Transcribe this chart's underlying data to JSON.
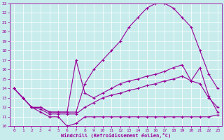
{
  "xlabel": "Windchill (Refroidissement éolien,°C)",
  "background_color": "#c8ecec",
  "grid_color": "#aacccc",
  "line_color": "#990099",
  "xlim": [
    -0.5,
    23.5
  ],
  "ylim": [
    10,
    23
  ],
  "yticks": [
    10,
    11,
    12,
    13,
    14,
    15,
    16,
    17,
    18,
    19,
    20,
    21,
    22,
    23
  ],
  "xticks": [
    0,
    1,
    2,
    3,
    4,
    5,
    6,
    7,
    8,
    9,
    10,
    11,
    12,
    13,
    14,
    15,
    16,
    17,
    18,
    19,
    20,
    21,
    22,
    23
  ],
  "series": [
    {
      "x": [
        0,
        1,
        2,
        3,
        4,
        5,
        6,
        7,
        8,
        9,
        10,
        11,
        12,
        13,
        14,
        15,
        16,
        17,
        18,
        19,
        20,
        21,
        22,
        23
      ],
      "y": [
        14.0,
        13.0,
        12.0,
        12.0,
        11.5,
        11.5,
        11.5,
        11.5,
        14.5,
        16.0,
        17.0,
        18.0,
        19.0,
        20.5,
        21.5,
        22.5,
        23.0,
        23.0,
        22.5,
        21.5,
        20.5,
        18.0,
        15.5,
        14.0
      ]
    },
    {
      "x": [
        0,
        1,
        2,
        3,
        4,
        5,
        6,
        7,
        8,
        9,
        10,
        11,
        12,
        13,
        14,
        15,
        16,
        17,
        18,
        19,
        20,
        21,
        22,
        23
      ],
      "y": [
        14.0,
        13.0,
        12.0,
        12.0,
        11.5,
        11.5,
        11.5,
        17.0,
        13.5,
        13.0,
        13.5,
        14.0,
        14.5,
        14.8,
        15.0,
        15.3,
        15.5,
        15.8,
        16.2,
        16.5,
        14.8,
        16.2,
        13.2,
        11.5
      ]
    },
    {
      "x": [
        0,
        1,
        2,
        3,
        4,
        5,
        6,
        7,
        8,
        9,
        10,
        11,
        12,
        13,
        14,
        15,
        16,
        17,
        18,
        19,
        20,
        21,
        22,
        23
      ],
      "y": [
        14.0,
        13.0,
        12.0,
        11.8,
        11.3,
        11.3,
        11.3,
        11.3,
        12.0,
        12.5,
        13.0,
        13.3,
        13.5,
        13.8,
        14.0,
        14.3,
        14.5,
        14.8,
        15.0,
        15.3,
        14.8,
        14.5,
        13.0,
        12.0
      ]
    },
    {
      "x": [
        0,
        1,
        2,
        3,
        4,
        5,
        6,
        7,
        8,
        9,
        10,
        11,
        12,
        13,
        14,
        15,
        16,
        17,
        18,
        19,
        20,
        21,
        22,
        23
      ],
      "y": [
        14.0,
        13.0,
        12.0,
        11.5,
        11.0,
        11.0,
        10.0,
        10.3,
        11.0,
        11.0,
        11.0,
        11.0,
        11.0,
        11.0,
        11.0,
        11.0,
        11.0,
        11.0,
        11.0,
        11.0,
        11.0,
        11.0,
        11.0,
        11.2
      ]
    }
  ]
}
